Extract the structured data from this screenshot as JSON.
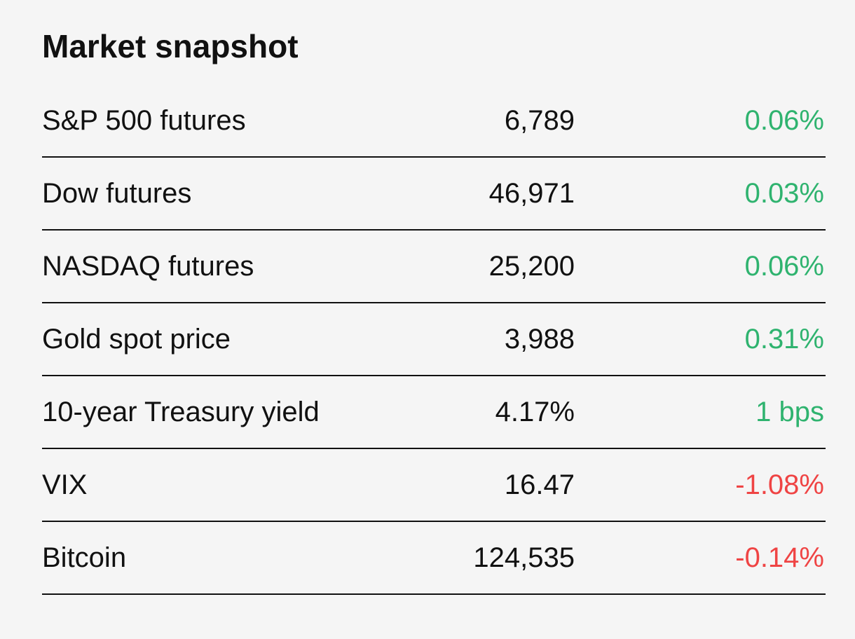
{
  "header": {
    "title": "Market snapshot"
  },
  "colors": {
    "up": "#2fb36f",
    "down": "#ef4444"
  },
  "table": {
    "rows": [
      {
        "name": "S&P 500 futures",
        "value": "6,789",
        "change": "0.06%",
        "direction": "up"
      },
      {
        "name": "Dow futures",
        "value": "46,971",
        "change": "0.03%",
        "direction": "up"
      },
      {
        "name": "NASDAQ futures",
        "value": "25,200",
        "change": "0.06%",
        "direction": "up"
      },
      {
        "name": "Gold spot price",
        "value": "3,988",
        "change": "0.31%",
        "direction": "up"
      },
      {
        "name": "10-year Treasury yield",
        "value": "4.17%",
        "change": "1 bps",
        "direction": "up"
      },
      {
        "name": "VIX",
        "value": "16.47",
        "change": "-1.08%",
        "direction": "down"
      },
      {
        "name": "Bitcoin",
        "value": "124,535",
        "change": "-0.14%",
        "direction": "down"
      }
    ]
  }
}
